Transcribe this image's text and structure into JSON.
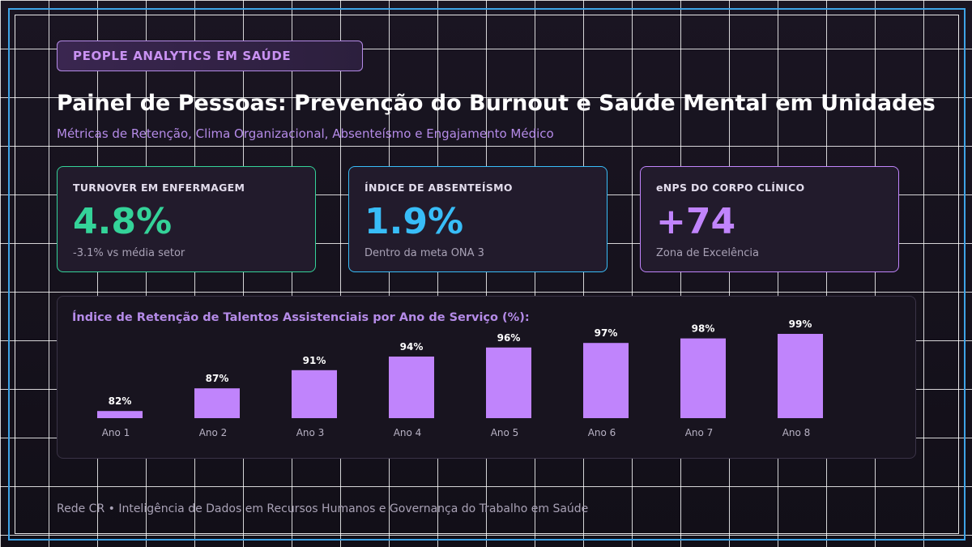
{
  "header": {
    "tag": "PEOPLE ANALYTICS EM SAÚDE",
    "title": "Painel de Pessoas: Prevenção do Burnout e Saúde Mental em Unidades",
    "subtitle": "Métricas de Retenção, Clima Organizacional, Absenteísmo e Engajamento Médico"
  },
  "cards": [
    {
      "label": "TURNOVER EM ENFERMAGEM",
      "value": "4.8%",
      "note": "-3.1% vs média setor",
      "color": "#34d399"
    },
    {
      "label": "ÍNDICE DE ABSENTEÍSMO",
      "value": "1.9%",
      "note": "Dentro da meta ONA 3",
      "color": "#38bdf8"
    },
    {
      "label": "eNPS DO CORPO CLÍNICO",
      "value": "+74",
      "note": "Zona de Excelência",
      "color": "#c084fc"
    }
  ],
  "chart_data": {
    "type": "bar",
    "title": "Índice de Retenção de Talentos Assistenciais por Ano de Serviço (%):",
    "categories": [
      "Ano 1",
      "Ano 2",
      "Ano 3",
      "Ano 4",
      "Ano 5",
      "Ano 6",
      "Ano 7",
      "Ano 8"
    ],
    "values": [
      82,
      87,
      91,
      94,
      96,
      97,
      98,
      99
    ],
    "value_labels": [
      "82%",
      "87%",
      "91%",
      "94%",
      "96%",
      "97%",
      "98%",
      "99%"
    ],
    "bar_color": "#c084fc",
    "grid": false
  },
  "footer": "Rede CR • Inteligência de Dados em Recursos Humanos e Governança do Trabalho em Saúde",
  "colors": {
    "accent_purple": "#c084fc",
    "frame_blue": "#3ea3e6",
    "background": "#15111b"
  }
}
